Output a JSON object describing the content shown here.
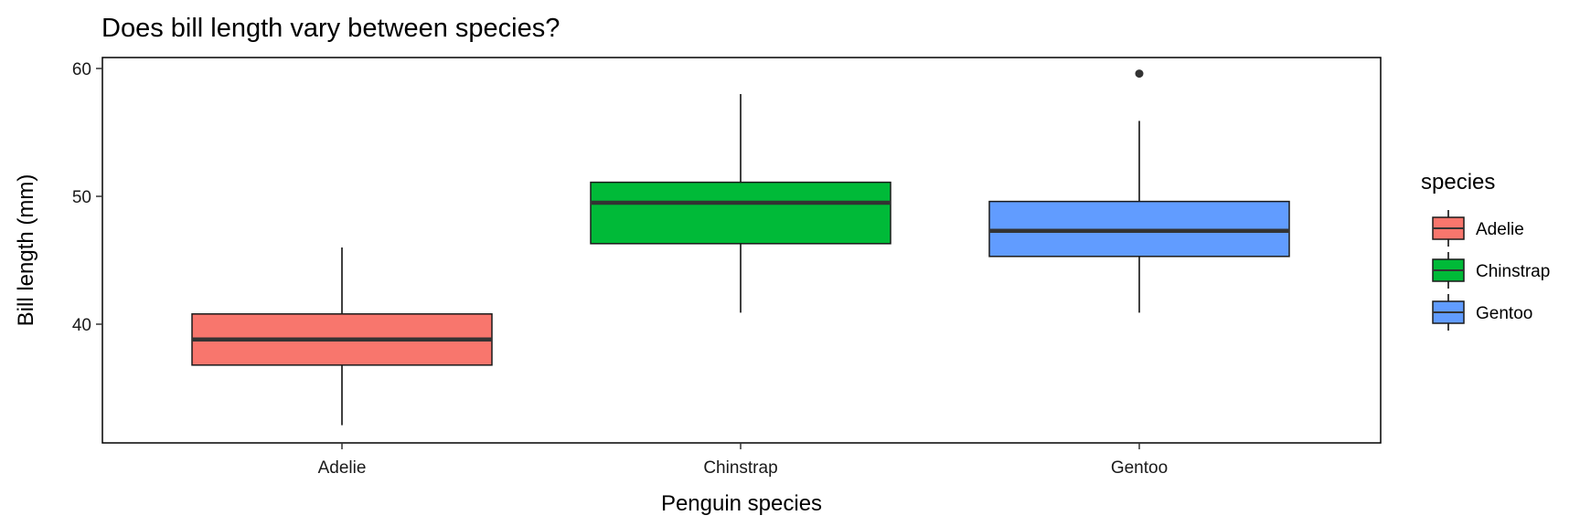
{
  "chart_data": {
    "type": "box",
    "title": "Does bill length vary between species?",
    "xlabel": "Penguin species",
    "ylabel": "Bill length (mm)",
    "categories": [
      "Adelie",
      "Chinstrap",
      "Gentoo"
    ],
    "ylim": [
      31,
      61
    ],
    "yticks": [
      40,
      50,
      60
    ],
    "grid": false,
    "legend": {
      "title": "species",
      "position": "right",
      "entries": [
        "Adelie",
        "Chinstrap",
        "Gentoo"
      ]
    },
    "colors": {
      "Adelie": "#F8766D",
      "Chinstrap": "#00BA38",
      "Gentoo": "#619CFF",
      "median": "#333333",
      "outlier": "#333333"
    },
    "series": [
      {
        "category": "Adelie",
        "whisker_low": 32.1,
        "q1": 36.8,
        "median": 38.8,
        "q3": 40.8,
        "whisker_high": 46.0,
        "outliers": []
      },
      {
        "category": "Chinstrap",
        "whisker_low": 40.9,
        "q1": 46.3,
        "median": 49.5,
        "q3": 51.1,
        "whisker_high": 58.0,
        "outliers": []
      },
      {
        "category": "Gentoo",
        "whisker_low": 40.9,
        "q1": 45.3,
        "median": 47.3,
        "q3": 49.6,
        "whisker_high": 55.9,
        "outliers": [
          59.6
        ]
      }
    ]
  }
}
